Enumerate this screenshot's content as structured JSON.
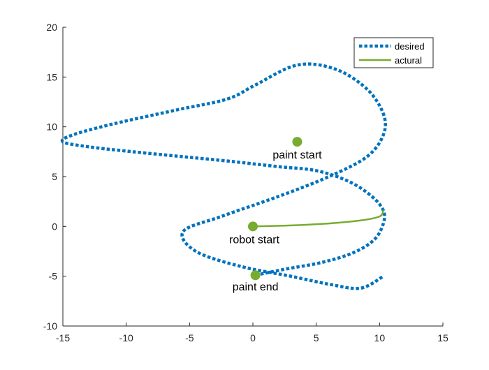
{
  "chart_data": {
    "type": "line",
    "title": "",
    "xlabel": "",
    "ylabel": "",
    "xlim": [
      -15,
      15
    ],
    "ylim": [
      -10,
      20
    ],
    "xticks": [
      -15,
      -10,
      -5,
      0,
      5,
      10,
      15
    ],
    "yticks": [
      -10,
      -5,
      0,
      5,
      10,
      15,
      20
    ],
    "grid": false,
    "legend_position": "top-right",
    "series": [
      {
        "name": "desired",
        "style": "dotted",
        "color": "#0072BD",
        "x": [
          0.2,
          2.5,
          5.5,
          8.0,
          9.6,
          10.3,
          10.3,
          9.4,
          7.6,
          5.0,
          2.0,
          -1.5,
          -5.5,
          -9.5,
          -13.0,
          -15.0,
          -14.2,
          -11.0,
          -6.0,
          -2.0,
          0.2,
          3.5,
          6.5,
          9.0,
          10.3,
          10.3,
          9.0,
          6.0,
          2.0,
          -2.5,
          -5.5,
          -4.5,
          -1.0,
          3.0,
          6.0,
          8.5,
          10.3
        ],
        "y": [
          -4.9,
          -4.3,
          -3.6,
          -2.6,
          -1.3,
          0.3,
          1.6,
          3.0,
          4.5,
          5.6,
          6.0,
          6.5,
          7.0,
          7.5,
          8.0,
          8.5,
          9.2,
          10.3,
          11.7,
          12.8,
          14.2,
          16.2,
          15.8,
          13.8,
          11.3,
          9.2,
          7.0,
          5.0,
          3.0,
          1.0,
          -0.5,
          -2.5,
          -4.0,
          -5.0,
          -5.8,
          -6.2,
          -5.0
        ]
      },
      {
        "name": "actural",
        "style": "solid",
        "color": "#77AC30",
        "x": [
          0.0,
          3.0,
          6.0,
          8.5,
          10.0,
          10.3
        ],
        "y": [
          0.0,
          0.1,
          0.3,
          0.6,
          1.0,
          1.6
        ]
      }
    ],
    "markers": [
      {
        "label": "paint start",
        "x": 3.5,
        "y": 8.5
      },
      {
        "label": "robot start",
        "x": 0,
        "y": 0
      },
      {
        "label": "paint end",
        "x": 0.2,
        "y": -4.9
      }
    ]
  }
}
